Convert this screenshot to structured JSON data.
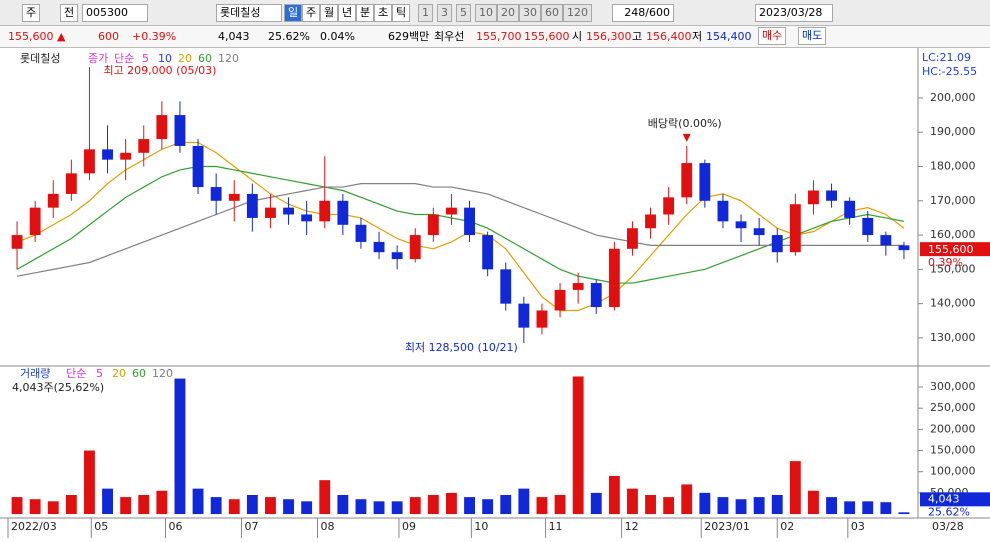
{
  "toolbar": {
    "period": "주",
    "mode": "전",
    "code": "005300",
    "name": "롯데칠성",
    "units": [
      "일",
      "주",
      "월",
      "년",
      "분",
      "초",
      "틱"
    ],
    "steps": [
      "1",
      "3",
      "5",
      "10",
      "20",
      "30",
      "60",
      "120"
    ],
    "count": "248/600",
    "date": "2023/03/28"
  },
  "quote": {
    "price": "155,600 ▲",
    "change": "600",
    "rate": "+0.39%",
    "volume": "4,043",
    "volume_rate": "25.62%",
    "turnover": "0.04%",
    "amount": "629백만",
    "best": "최우선",
    "ask": "155,700",
    "bid": "155,600",
    "open_label": "시",
    "open": "156,300",
    "high_label": "고",
    "high": "156,400",
    "low_label": "저",
    "low": "154,400",
    "buy": "매수",
    "sell": "매도"
  },
  "chart_data": [
    {
      "type": "candlestick",
      "title": "롯데칠성",
      "legend_label": "종가",
      "ma_label": "단순",
      "lc": "LC:21.09",
      "hc": "HC:-25.55",
      "up_color": "#e01010",
      "down_color": "#1028d8",
      "open": [
        156000,
        160000,
        168000,
        172000,
        178000,
        185000,
        182000,
        184000,
        188000,
        195000,
        186000,
        174000,
        170000,
        172000,
        165000,
        168000,
        166000,
        164000,
        170000,
        163000,
        158000,
        155000,
        153000,
        160000,
        166000,
        168000,
        160000,
        150000,
        140000,
        133000,
        138000,
        144000,
        146000,
        139000,
        156000,
        162000,
        166000,
        171000,
        181000,
        170000,
        164000,
        162000,
        160000,
        155000,
        169000,
        173000,
        170000,
        165000,
        160000,
        157000
      ],
      "high": [
        164000,
        170000,
        176000,
        182000,
        209000,
        192000,
        188000,
        192000,
        199000,
        199000,
        188000,
        178000,
        176000,
        175000,
        172000,
        171000,
        170000,
        183000,
        172000,
        165000,
        161000,
        157000,
        162000,
        168000,
        172000,
        170000,
        161000,
        152000,
        142000,
        140000,
        146000,
        149000,
        147000,
        158000,
        164000,
        168000,
        174000,
        186000,
        182000,
        172000,
        166000,
        165000,
        162000,
        172000,
        176000,
        175000,
        171000,
        167000,
        161000,
        158000
      ],
      "low": [
        150000,
        158000,
        165000,
        170000,
        176000,
        178000,
        176000,
        180000,
        185000,
        184000,
        172000,
        166000,
        164000,
        161000,
        162000,
        163000,
        160000,
        162000,
        160000,
        156000,
        153000,
        150000,
        152000,
        158000,
        163000,
        158000,
        148000,
        138000,
        128500,
        131000,
        136000,
        140000,
        137000,
        138000,
        154000,
        159000,
        163000,
        169000,
        168000,
        162000,
        158000,
        157000,
        152000,
        154000,
        166000,
        168000,
        163000,
        158000,
        154000,
        153000
      ],
      "close": [
        160000,
        168000,
        172000,
        178000,
        185000,
        182000,
        184000,
        188000,
        195000,
        186000,
        174000,
        170000,
        172000,
        165000,
        168000,
        166000,
        164000,
        170000,
        163000,
        158000,
        155000,
        153000,
        160000,
        166000,
        168000,
        160000,
        150000,
        140000,
        133000,
        138000,
        144000,
        146000,
        139000,
        156000,
        162000,
        166000,
        171000,
        181000,
        170000,
        164000,
        162000,
        160000,
        155000,
        169000,
        173000,
        170000,
        165000,
        160000,
        157000,
        155600
      ],
      "last_label": "155,600",
      "last_rate": "0.39%",
      "series": [
        {
          "name": "5",
          "color": "#e030d0"
        },
        {
          "name": "10",
          "color": "#2040e0"
        },
        {
          "name": "20",
          "color": "#e0a000",
          "values": [
            158000,
            160000,
            163000,
            166000,
            170000,
            175000,
            179000,
            182000,
            185000,
            187000,
            187000,
            184000,
            180000,
            176000,
            172000,
            169000,
            167000,
            166000,
            166000,
            165000,
            162000,
            159000,
            157000,
            156000,
            158000,
            161000,
            160000,
            156000,
            149000,
            142000,
            138000,
            138000,
            140000,
            143000,
            148000,
            154000,
            160000,
            166000,
            171000,
            172000,
            170000,
            166000,
            162000,
            160000,
            161000,
            164000,
            167000,
            168000,
            166000,
            162000
          ]
        },
        {
          "name": "60",
          "color": "#30a030",
          "values": [
            150000,
            153000,
            156000,
            159000,
            163000,
            167000,
            171000,
            174000,
            177000,
            179000,
            180000,
            180000,
            179000,
            178000,
            177000,
            176000,
            175000,
            174000,
            173000,
            171000,
            169000,
            167000,
            166000,
            166000,
            165000,
            164000,
            162000,
            159000,
            156000,
            153000,
            150000,
            148000,
            147000,
            146000,
            146000,
            147000,
            148000,
            149000,
            150000,
            152000,
            154000,
            156000,
            158000,
            160000,
            162000,
            164000,
            165000,
            166000,
            165000,
            164000
          ]
        },
        {
          "name": "120",
          "color": "#808080",
          "values": [
            148000,
            149000,
            150000,
            151000,
            152000,
            154000,
            156000,
            158000,
            160000,
            162000,
            164000,
            166000,
            168000,
            170000,
            171000,
            172000,
            173000,
            174000,
            174000,
            175000,
            175000,
            175000,
            175000,
            174000,
            174000,
            173000,
            172000,
            170000,
            168000,
            166000,
            164000,
            162000,
            160000,
            159000,
            158000,
            157000,
            157000,
            157000,
            157000,
            157000,
            157000,
            157000,
            157000,
            157000,
            157000,
            157000,
            157000,
            157000,
            157000,
            157000
          ]
        }
      ],
      "annotations": [
        "최고 209,000 (05/03)",
        "최저 128,500 (10/21)",
        "배당락(0.00%)"
      ],
      "ylim": [
        122100,
        213400
      ],
      "yticks": [
        {
          "value": 130000,
          "label": "130,000"
        },
        {
          "value": 140000,
          "label": "140,000"
        },
        {
          "value": 150000,
          "label": "150,000"
        },
        {
          "value": 160000,
          "label": "160,000"
        },
        {
          "value": 170000,
          "label": "170,000"
        },
        {
          "value": 180000,
          "label": "180,000"
        },
        {
          "value": 190000,
          "label": "190,000"
        },
        {
          "value": 200000,
          "label": "200,000"
        }
      ]
    },
    {
      "type": "bar",
      "title": "거래량",
      "ma_label": "단순",
      "subtitle": "4,043주(25,62%)",
      "series": [
        {
          "name": "5",
          "color": "#e030d0"
        },
        {
          "name": "20",
          "color": "#e0a000"
        },
        {
          "name": "60",
          "color": "#30a030"
        },
        {
          "name": "120",
          "color": "#808080"
        }
      ],
      "values": [
        40000,
        35000,
        30000,
        45000,
        150000,
        60000,
        40000,
        45000,
        55000,
        320000,
        60000,
        40000,
        35000,
        45000,
        40000,
        35000,
        30000,
        80000,
        45000,
        35000,
        30000,
        30000,
        40000,
        45000,
        50000,
        40000,
        35000,
        45000,
        60000,
        40000,
        45000,
        325000,
        50000,
        90000,
        60000,
        45000,
        40000,
        70000,
        50000,
        40000,
        35000,
        40000,
        45000,
        125000,
        55000,
        40000,
        30000,
        30000,
        28000,
        4043
      ],
      "last_label": "4,043",
      "last_rate": "25.62%",
      "end_label": "03/28",
      "ylim": [
        -7000,
        345000
      ],
      "yticks": [
        {
          "value": 50000,
          "label": "50,000"
        },
        {
          "value": 100000,
          "label": "100,000"
        },
        {
          "value": 150000,
          "label": "150,000"
        },
        {
          "value": 200000,
          "label": "200,000"
        },
        {
          "value": 250000,
          "label": "250,000"
        },
        {
          "value": 300000,
          "label": "300,000"
        }
      ],
      "xlim": [
        0,
        50
      ],
      "xticks": [
        {
          "value": 0,
          "label": "2022/03"
        },
        {
          "value": 4.6,
          "label": "05"
        },
        {
          "value": 8.7,
          "label": "06"
        },
        {
          "value": 12.9,
          "label": "07"
        },
        {
          "value": 17.1,
          "label": "08"
        },
        {
          "value": 21.6,
          "label": "09"
        },
        {
          "value": 25.6,
          "label": "10"
        },
        {
          "value": 29.7,
          "label": "11"
        },
        {
          "value": 33.9,
          "label": "12"
        },
        {
          "value": 38.3,
          "label": "2023/01"
        },
        {
          "value": 42.5,
          "label": "02"
        },
        {
          "value": 46.4,
          "label": "03"
        }
      ]
    }
  ]
}
